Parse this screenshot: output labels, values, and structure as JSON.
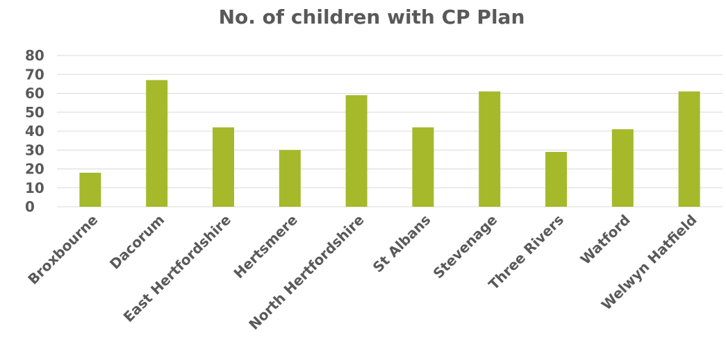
{
  "chart_data": {
    "type": "bar",
    "title": "No. of children with CP Plan",
    "xlabel": "",
    "ylabel": "",
    "categories": [
      "Broxbourne",
      "Dacorum",
      "East Hertfordshire",
      "Hertsmere",
      "North Hertfordshire",
      "St Albans",
      "Stevenage",
      "Three Rivers",
      "Watford",
      "Welwyn Hatfield"
    ],
    "values": [
      18,
      67,
      42,
      30,
      59,
      42,
      61,
      29,
      41,
      61
    ],
    "ylim": [
      0,
      80
    ],
    "yticks": [
      "0",
      "10",
      "20",
      "30",
      "40",
      "50",
      "60",
      "70",
      "80"
    ],
    "grid": true,
    "legend": "none",
    "bar_color": "#a5b92a"
  }
}
